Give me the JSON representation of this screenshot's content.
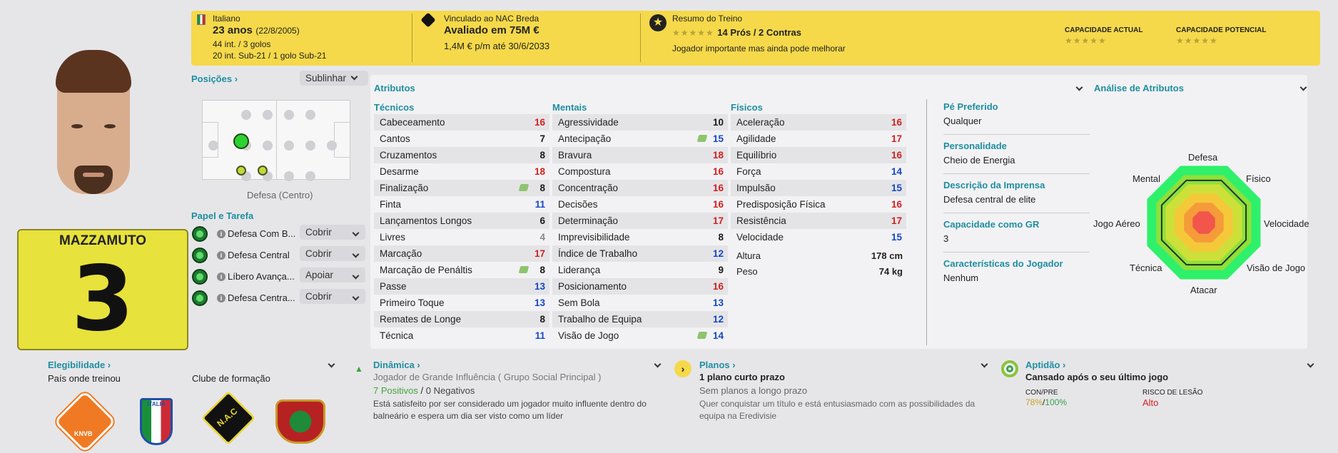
{
  "header": {
    "nationality": "Italiano",
    "age": "23 anos",
    "dob": "(22/8/2005)",
    "caps": "44 int. / 3 golos",
    "u21": "20 int. Sub-21 / 1 golo Sub-21",
    "club_line": "Vinculado ao NAC Breda",
    "value": "Avaliado em 75M €",
    "wage": "1,4M € p/m até 30/6/2033",
    "training_title": "Resumo do Treino",
    "pros_cons": "14 Prós / 2 Contras",
    "training_note": "Jogador importante mas ainda pode melhorar",
    "current_ability": "CAPACIDADE ACTUAL",
    "potential_ability": "CAPACIDADE POTENCIAL",
    "stars": "★★★★★"
  },
  "player": {
    "name": "MAZZAMUTO",
    "number": "3"
  },
  "positions": {
    "title": "Posições",
    "dropdown": "Sublinhar",
    "label": "Defesa (Centro)"
  },
  "roles": {
    "title": "Papel e Tarefa",
    "items": [
      {
        "role": "Defesa Com B...",
        "duty": "Cobrir"
      },
      {
        "role": "Defesa Central",
        "duty": "Cobrir"
      },
      {
        "role": "Líbero Avança...",
        "duty": "Apoiar"
      },
      {
        "role": "Defesa Centra...",
        "duty": "Cobrir"
      }
    ]
  },
  "attributes": {
    "title": "Atributos",
    "technical": {
      "title": "Técnicos",
      "rows": [
        {
          "n": "Cabeceamento",
          "v": "16",
          "c": "red"
        },
        {
          "n": "Cantos",
          "v": "7",
          "c": "blk"
        },
        {
          "n": "Cruzamentos",
          "v": "8",
          "c": "blk"
        },
        {
          "n": "Desarme",
          "v": "18",
          "c": "red"
        },
        {
          "n": "Finalização",
          "v": "8",
          "c": "blk",
          "i": true
        },
        {
          "n": "Finta",
          "v": "11",
          "c": "blue"
        },
        {
          "n": "Lançamentos Longos",
          "v": "6",
          "c": "blk"
        },
        {
          "n": "Livres",
          "v": "4",
          "c": "gray"
        },
        {
          "n": "Marcação",
          "v": "17",
          "c": "red"
        },
        {
          "n": "Marcação de Penáltis",
          "v": "8",
          "c": "blk",
          "i": true
        },
        {
          "n": "Passe",
          "v": "13",
          "c": "blue"
        },
        {
          "n": "Primeiro Toque",
          "v": "13",
          "c": "blue"
        },
        {
          "n": "Remates de Longe",
          "v": "8",
          "c": "blk"
        },
        {
          "n": "Técnica",
          "v": "11",
          "c": "blue"
        }
      ]
    },
    "mental": {
      "title": "Mentais",
      "rows": [
        {
          "n": "Agressividade",
          "v": "10",
          "c": "blk"
        },
        {
          "n": "Antecipação",
          "v": "15",
          "c": "blue",
          "i": true
        },
        {
          "n": "Bravura",
          "v": "18",
          "c": "red"
        },
        {
          "n": "Compostura",
          "v": "16",
          "c": "red"
        },
        {
          "n": "Concentração",
          "v": "16",
          "c": "red"
        },
        {
          "n": "Decisões",
          "v": "16",
          "c": "red"
        },
        {
          "n": "Determinação",
          "v": "17",
          "c": "red"
        },
        {
          "n": "Imprevisibilidade",
          "v": "8",
          "c": "blk"
        },
        {
          "n": "Índice de Trabalho",
          "v": "12",
          "c": "blue"
        },
        {
          "n": "Liderança",
          "v": "9",
          "c": "blk"
        },
        {
          "n": "Posicionamento",
          "v": "16",
          "c": "red"
        },
        {
          "n": "Sem Bola",
          "v": "13",
          "c": "blue"
        },
        {
          "n": "Trabalho de Equipa",
          "v": "12",
          "c": "blue"
        },
        {
          "n": "Visão de Jogo",
          "v": "14",
          "c": "blue",
          "i": true
        }
      ]
    },
    "physical": {
      "title": "Físicos",
      "rows": [
        {
          "n": "Aceleração",
          "v": "16",
          "c": "red"
        },
        {
          "n": "Agilidade",
          "v": "17",
          "c": "red"
        },
        {
          "n": "Equilíbrio",
          "v": "16",
          "c": "red"
        },
        {
          "n": "Força",
          "v": "14",
          "c": "blue"
        },
        {
          "n": "Impulsão",
          "v": "15",
          "c": "blue"
        },
        {
          "n": "Predisposição Física",
          "v": "16",
          "c": "red"
        },
        {
          "n": "Resistência",
          "v": "17",
          "c": "red"
        },
        {
          "n": "Velocidade",
          "v": "15",
          "c": "blue"
        }
      ]
    },
    "height_label": "Altura",
    "height": "178 cm",
    "weight_label": "Peso",
    "weight": "74 kg"
  },
  "info": {
    "foot_label": "Pé Preferido",
    "foot": "Qualquer",
    "personality_label": "Personalidade",
    "personality": "Cheio de Energia",
    "press_label": "Descrição da Imprensa",
    "press": "Defesa central de elite",
    "gk_label": "Capacidade como GR",
    "gk": "3",
    "traits_label": "Características do Jogador",
    "traits": "Nenhum"
  },
  "analysis": {
    "title": "Análise de Atributos",
    "labels": [
      "Defesa",
      "Físico",
      "Velocidade",
      "Visão de Jogo",
      "Atacar",
      "Técnica",
      "Jogo Aéreo",
      "Mental"
    ]
  },
  "eligibility": {
    "title": "Elegibilidade",
    "trained": "País onde treinou",
    "club": "Clube de formação",
    "knvb": "KNVB",
    "italia": "ITALIA",
    "nac": "N.A.C"
  },
  "dynamics": {
    "title": "Dinâmica",
    "role": "Jogador de Grande Influência",
    "group": "( Grupo Social Principal )",
    "pos": "7 Positivos",
    "sep": "/",
    "neg": "0 Negativos",
    "text": "Está satisfeito por ser considerado um jogador muito influente dentro do balneário e espera um dia ser visto como um líder"
  },
  "plans": {
    "title": "Planos",
    "short": "1 plano curto prazo",
    "long": "Sem planos a longo prazo",
    "text": "Quer conquistar um título e está entusiasmado com as possibilidades da equipa na Eredivisie"
  },
  "fitness": {
    "title": "Aptidão",
    "status": "Cansado após o seu último jogo",
    "con_label": "CON/PRE",
    "con": "78%",
    "sep": "/",
    "pre": "100%",
    "risk_label": "RISCO DE LESÃO",
    "risk": "Alto"
  }
}
